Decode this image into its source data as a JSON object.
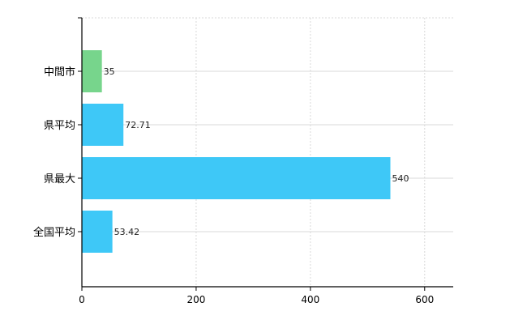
{
  "chart_data": {
    "type": "bar",
    "orientation": "horizontal",
    "title": "",
    "xlabel": "",
    "ylabel": "",
    "categories": [
      "中間市",
      "県平均",
      "県最大",
      "全国平均"
    ],
    "values": [
      35,
      72.71,
      540,
      53.42
    ],
    "value_labels": [
      "35",
      "72.71",
      "540",
      "53.42"
    ],
    "bar_colors": [
      "#77d58c",
      "#3ec8f7",
      "#3ec8f7",
      "#3ec8f7"
    ],
    "xlim": [
      0,
      650
    ],
    "x_ticks": [
      0,
      200,
      400,
      600
    ],
    "x_tick_labels": [
      "0",
      "200",
      "400",
      "600"
    ],
    "grid": true,
    "legend": "none"
  }
}
